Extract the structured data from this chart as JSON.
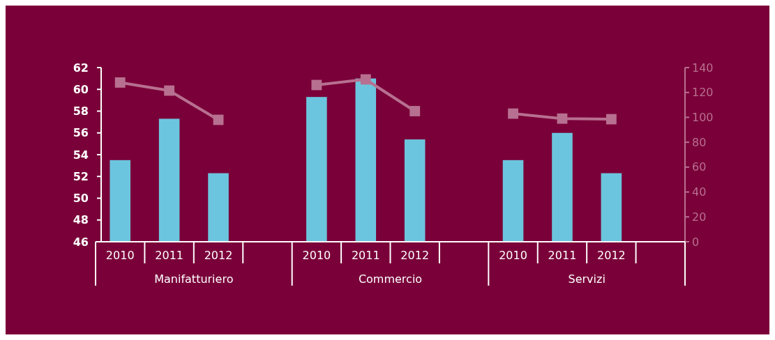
{
  "chart_data": {
    "type": "bar",
    "categories": [
      "2010",
      "2011",
      "2012",
      null,
      "2010",
      "2011",
      "2012",
      null,
      "2010",
      "2011",
      "2012",
      null
    ],
    "series": [
      {
        "color": "#6cc5de",
        "values": [
          53.5,
          57.3,
          52.3,
          null,
          59.3,
          61.0,
          55.4,
          null,
          53.5,
          56.0,
          52.3,
          null
        ]
      },
      {
        "type": "line",
        "axis": "y2",
        "color": "#b87090",
        "marker": "square",
        "values": [
          128,
          121.5,
          98,
          null,
          126,
          130.5,
          105,
          null,
          103,
          99,
          98.5,
          null
        ]
      }
    ],
    "ylim": [
      46,
      62
    ],
    "yticks": [
      46,
      48,
      50,
      52,
      54,
      56,
      58,
      60,
      62
    ],
    "y2lim": [
      0,
      140
    ],
    "y2ticks": [
      0,
      20,
      40,
      60,
      80,
      100,
      120,
      140
    ],
    "annotations": [
      "Manifatturiero",
      "Commercio",
      "Servizi"
    ],
    "grid": false
  }
}
